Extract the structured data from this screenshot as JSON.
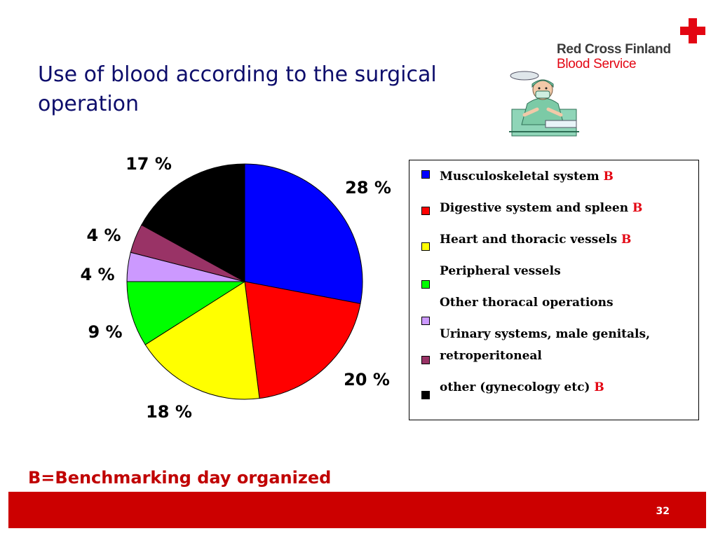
{
  "slide": {
    "title": "Use of blood according to the surgical operation",
    "footnote": "B=Benchmarking day organized",
    "page_number": "32"
  },
  "logo": {
    "line1": "Red Cross Finland",
    "line2": "Blood Service",
    "brand_color": "#e30613"
  },
  "illustration": {
    "icon": "surgeon-clipart-icon"
  },
  "chart_data": {
    "type": "pie",
    "title": "",
    "unit": "%",
    "slices": [
      {
        "label": "Musculoskeletal system",
        "benchmark": "B",
        "value": 28,
        "value_label": "28 %",
        "color": "#0000ff"
      },
      {
        "label": "Digestive system and spleen",
        "benchmark": "B",
        "value": 20,
        "value_label": "20 %",
        "color": "#ff0000"
      },
      {
        "label": "Heart and thoracic vessels",
        "benchmark": "B",
        "value": 18,
        "value_label": "18 %",
        "color": "#ffff00"
      },
      {
        "label": "Peripheral vessels",
        "benchmark": "",
        "value": 9,
        "value_label": "9 %",
        "color": "#00ff00"
      },
      {
        "label": "Other thoracal operations",
        "benchmark": "",
        "value": 4,
        "value_label": "4 %",
        "color": "#cc99ff"
      },
      {
        "label": "Urinary systems, male genitals, retroperitoneal",
        "benchmark": "",
        "value": 4,
        "value_label": "4 %",
        "color": "#993366"
      },
      {
        "label": "other (gynecology etc)",
        "benchmark": "B",
        "value": 17,
        "value_label": "17 %",
        "color": "#000000"
      }
    ],
    "legend_placement": "right",
    "start_angle": "12 o'clock, clockwise"
  }
}
